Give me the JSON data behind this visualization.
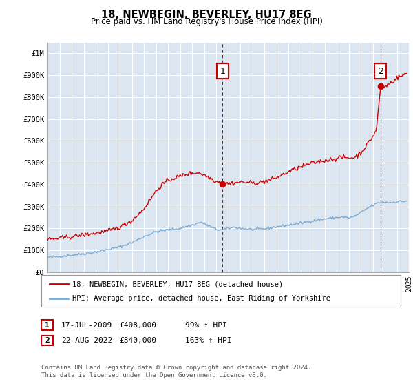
{
  "title": "18, NEWBEGIN, BEVERLEY, HU17 8EG",
  "subtitle": "Price paid vs. HM Land Registry's House Price Index (HPI)",
  "legend_line1": "18, NEWBEGIN, BEVERLEY, HU17 8EG (detached house)",
  "legend_line2": "HPI: Average price, detached house, East Riding of Yorkshire",
  "annotation1_date": "17-JUL-2009",
  "annotation1_price": "£408,000",
  "annotation1_hpi": "99% ↑ HPI",
  "annotation1_year": 2009.54,
  "annotation2_date": "22-AUG-2022",
  "annotation2_price": "£840,000",
  "annotation2_hpi": "163% ↑ HPI",
  "annotation2_year": 2022.64,
  "footer": "Contains HM Land Registry data © Crown copyright and database right 2024.\nThis data is licensed under the Open Government Licence v3.0.",
  "red_line_color": "#cc0000",
  "blue_line_color": "#7aaad0",
  "background_color": "#dce6f1",
  "ylim": [
    0,
    1050000
  ],
  "xlim_start": 1995,
  "xlim_end": 2025,
  "yticks": [
    0,
    100000,
    200000,
    300000,
    400000,
    500000,
    600000,
    700000,
    800000,
    900000,
    1000000
  ],
  "ytick_labels": [
    "£0",
    "£100K",
    "£200K",
    "£300K",
    "£400K",
    "£500K",
    "£600K",
    "£700K",
    "£800K",
    "£900K",
    "£1M"
  ]
}
